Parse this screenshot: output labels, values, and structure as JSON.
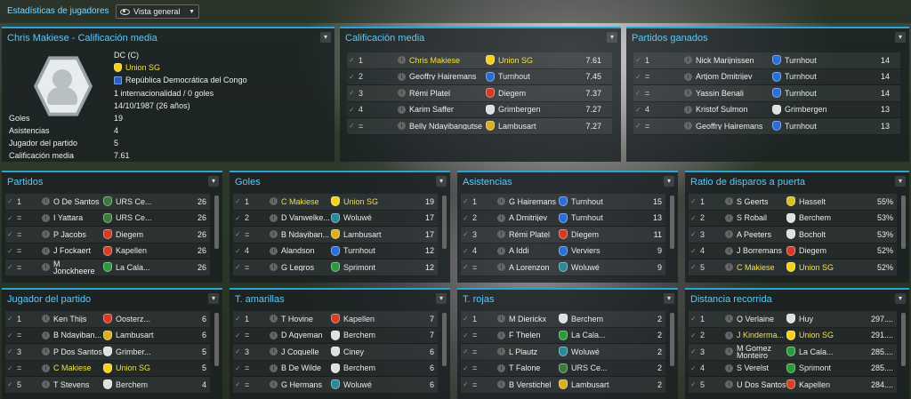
{
  "topbar": {
    "title": "Estadísticas de jugadores",
    "view": "Vista general"
  },
  "profile": {
    "title": "Chris Makiese - Calificación media",
    "position": "DC (C)",
    "club": "Union SG",
    "nation": "República Democrática del Congo",
    "caps": "1 internacionalidad / 0 goles",
    "dob": "14/10/1987 (26 años)",
    "stats": [
      {
        "k": "Goles",
        "v": "19"
      },
      {
        "k": "Asistencias",
        "v": "4"
      },
      {
        "k": "Jugador del partido",
        "v": "5"
      },
      {
        "k": "Calificación media",
        "v": "7.61"
      }
    ]
  },
  "panels": {
    "rating": {
      "title": "Calificación media",
      "rows": [
        {
          "pos": "1",
          "name": "Chris Makiese",
          "club": "Union SG",
          "val": "7.61",
          "hl": true,
          "c": "#f2d21c"
        },
        {
          "pos": "2",
          "name": "Geoffry Hairemans",
          "club": "Turnhout",
          "val": "7.45",
          "c": "#2a6fd6"
        },
        {
          "pos": "3",
          "name": "Rémi Platel",
          "club": "Diegem",
          "val": "7.37",
          "c": "#d43a2a"
        },
        {
          "pos": "4",
          "name": "Karim Saffer",
          "club": "Grimbergen",
          "val": "7.27",
          "c": "#e0e0e0"
        },
        {
          "pos": "=",
          "name": "Belly Ndayibangutse",
          "club": "Lambusart",
          "val": "7.27",
          "c": "#d8b020"
        }
      ]
    },
    "won": {
      "title": "Partidos ganados",
      "rows": [
        {
          "pos": "1",
          "name": "Nick Marijnissen",
          "club": "Turnhout",
          "val": "14",
          "c": "#2a6fd6"
        },
        {
          "pos": "=",
          "name": "Artjom Dmitrijev",
          "club": "Turnhout",
          "val": "14",
          "c": "#2a6fd6"
        },
        {
          "pos": "=",
          "name": "Yassin Benali",
          "club": "Turnhout",
          "val": "14",
          "c": "#2a6fd6"
        },
        {
          "pos": "4",
          "name": "Kristof Sulmon",
          "club": "Grimbergen",
          "val": "13",
          "c": "#e0e0e0"
        },
        {
          "pos": "=",
          "name": "Geoffry Hairemans",
          "club": "Turnhout",
          "val": "13",
          "c": "#2a6fd6"
        }
      ]
    },
    "matches": {
      "title": "Partidos",
      "rows": [
        {
          "pos": "1",
          "name": "O De Santos",
          "club": "URS Ce...",
          "val": "26",
          "c": "#3a7a3a"
        },
        {
          "pos": "=",
          "name": "I Yattara",
          "club": "URS Ce...",
          "val": "26",
          "c": "#3a7a3a"
        },
        {
          "pos": "=",
          "name": "P Jacobs",
          "club": "Diegem",
          "val": "26",
          "c": "#d43a2a"
        },
        {
          "pos": "=",
          "name": "J Fockaert",
          "club": "Kapellen",
          "val": "26",
          "c": "#d4402a"
        },
        {
          "pos": "=",
          "name": "M Jonckheere",
          "club": "La Cala...",
          "val": "26",
          "c": "#2a9a3a"
        }
      ]
    },
    "goals": {
      "title": "Goles",
      "rows": [
        {
          "pos": "1",
          "name": "C Makiese",
          "club": "Union SG",
          "val": "19",
          "hl": true,
          "c": "#f2d21c"
        },
        {
          "pos": "2",
          "name": "D Vanwelke...",
          "club": "Woluwé",
          "val": "17",
          "c": "#2a8a9a"
        },
        {
          "pos": "=",
          "name": "B Ndayiban...",
          "club": "Lambusart",
          "val": "17",
          "c": "#d8b020"
        },
        {
          "pos": "4",
          "name": "Alandson",
          "club": "Turnhout",
          "val": "12",
          "c": "#2a6fd6"
        },
        {
          "pos": "=",
          "name": "G Legros",
          "club": "Sprimont",
          "val": "12",
          "c": "#2a9a3a"
        }
      ]
    },
    "assists": {
      "title": "Asistencias",
      "rows": [
        {
          "pos": "1",
          "name": "G Hairemans",
          "club": "Turnhout",
          "val": "15",
          "c": "#2a6fd6"
        },
        {
          "pos": "2",
          "name": "A Dmitrijev",
          "club": "Turnhout",
          "val": "13",
          "c": "#2a6fd6"
        },
        {
          "pos": "3",
          "name": "Rémi Platel",
          "club": "Diegem",
          "val": "11",
          "c": "#d43a2a"
        },
        {
          "pos": "4",
          "name": "A Iddi",
          "club": "Verviers",
          "val": "9",
          "c": "#2a6fd6"
        },
        {
          "pos": "=",
          "name": "A Lorenzon",
          "club": "Woluwé",
          "val": "9",
          "c": "#2a8a9a"
        }
      ]
    },
    "shots": {
      "title": "Ratio de disparos a puerta",
      "rows": [
        {
          "pos": "1",
          "name": "S Geerts",
          "club": "Hasselt",
          "val": "55%",
          "c": "#d8c020"
        },
        {
          "pos": "2",
          "name": "S Robail",
          "club": "Berchem",
          "val": "53%",
          "c": "#e0e0e0"
        },
        {
          "pos": "3",
          "name": "A Peeters",
          "club": "Bocholt",
          "val": "53%",
          "c": "#e0e0e0"
        },
        {
          "pos": "4",
          "name": "J Borremans",
          "club": "Diegem",
          "val": "52%",
          "c": "#d43a2a"
        },
        {
          "pos": "5",
          "name": "C Makiese",
          "club": "Union SG",
          "val": "52%",
          "hl": true,
          "c": "#f2d21c"
        }
      ]
    },
    "motm": {
      "title": "Jugador del partido",
      "rows": [
        {
          "pos": "1",
          "name": "Ken Thijs",
          "club": "Oosterz...",
          "val": "6",
          "c": "#d43a2a"
        },
        {
          "pos": "=",
          "name": "B Ndayiban...",
          "club": "Lambusart",
          "val": "6",
          "c": "#d8b020"
        },
        {
          "pos": "3",
          "name": "P Dos Santos",
          "club": "Grimber...",
          "val": "5",
          "c": "#e0e0e0"
        },
        {
          "pos": "=",
          "name": "C Makiese",
          "club": "Union SG",
          "val": "5",
          "hl": true,
          "c": "#f2d21c"
        },
        {
          "pos": "5",
          "name": "T Stevens",
          "club": "Berchem",
          "val": "4",
          "c": "#e0e0e0"
        }
      ]
    },
    "yellow": {
      "title": "T. amarillas",
      "rows": [
        {
          "pos": "1",
          "name": "T Hovine",
          "club": "Kapellen",
          "val": "7",
          "c": "#d4402a"
        },
        {
          "pos": "=",
          "name": "D Agyeman",
          "club": "Berchem",
          "val": "7",
          "c": "#e0e0e0"
        },
        {
          "pos": "3",
          "name": "J Coquelle",
          "club": "Ciney",
          "val": "6",
          "c": "#e0e0e0"
        },
        {
          "pos": "=",
          "name": "B De Wilde",
          "club": "Berchem",
          "val": "6",
          "c": "#e0e0e0"
        },
        {
          "pos": "=",
          "name": "G Hermans",
          "club": "Woluwé",
          "val": "6",
          "c": "#2a8a9a"
        }
      ]
    },
    "red": {
      "title": "T. rojas",
      "rows": [
        {
          "pos": "1",
          "name": "M Dierickx",
          "club": "Berchem",
          "val": "2",
          "c": "#e0e0e0"
        },
        {
          "pos": "=",
          "name": "F Thelen",
          "club": "La Cala...",
          "val": "2",
          "c": "#2a9a3a"
        },
        {
          "pos": "=",
          "name": "L Plautz",
          "club": "Woluwé",
          "val": "2",
          "c": "#2a8a9a"
        },
        {
          "pos": "=",
          "name": "T Falone",
          "club": "URS Ce...",
          "val": "2",
          "c": "#3a7a3a"
        },
        {
          "pos": "=",
          "name": "B Verstichel",
          "club": "Lambusart",
          "val": "2",
          "c": "#d8b020"
        }
      ]
    },
    "distance": {
      "title": "Distancia recorrida",
      "rows": [
        {
          "pos": "1",
          "name": "Q Verlaine",
          "club": "Huy",
          "val": "297....",
          "c": "#e0e0e0"
        },
        {
          "pos": "2",
          "name": "J Kinderma...",
          "club": "Union SG",
          "val": "291....",
          "hl": true,
          "c": "#f2d21c"
        },
        {
          "pos": "3",
          "name": "M Gomez Monteiro",
          "club": "La Cala...",
          "val": "285....",
          "c": "#2a9a3a"
        },
        {
          "pos": "4",
          "name": "S Verelst",
          "club": "Sprimont",
          "val": "285....",
          "c": "#2a9a3a"
        },
        {
          "pos": "5",
          "name": "U Dos Santos",
          "club": "Kapellen",
          "val": "284....",
          "c": "#d4402a"
        }
      ]
    }
  }
}
